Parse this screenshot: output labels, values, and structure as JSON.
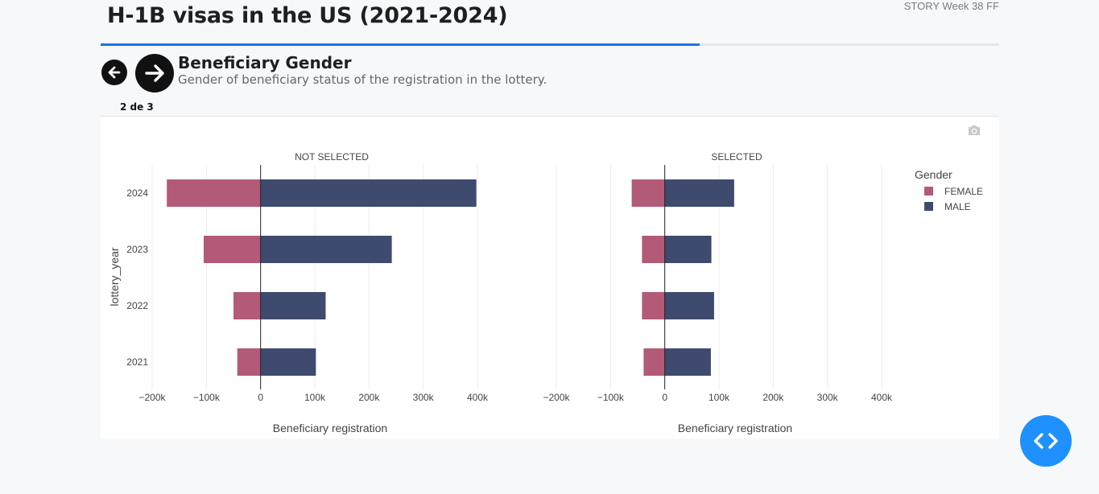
{
  "header": {
    "title": "H-1B visas in the US (2021-2024)",
    "story_tag": "STORY Week 38 FF",
    "progress": 0.667
  },
  "slide": {
    "title": "Beneficiary Gender",
    "subtitle": "Gender of beneficiary status of the registration in the lottery.",
    "counter": "2 de 3"
  },
  "icons": {
    "prev": "arrow-left-icon",
    "next": "arrow-right-icon",
    "camera": "camera-icon",
    "code": "code-icon"
  },
  "chart_data": {
    "type": "bar",
    "orientation": "horizontal",
    "ylabel": "lottery_year",
    "categories": [
      "2024",
      "2023",
      "2022",
      "2021"
    ],
    "legend": {
      "title": "Gender",
      "placement": "top-right"
    },
    "xticks": [
      -200000,
      -100000,
      0,
      100000,
      200000,
      300000,
      400000
    ],
    "xtick_labels": [
      "−200k",
      "−100k",
      "0",
      "100k",
      "200k",
      "300k",
      "400k"
    ],
    "xlim": [
      -200000,
      400000
    ],
    "grid": true,
    "panels": [
      {
        "title": "NOT SELECTED",
        "xlabel": "Beneficiary registration",
        "series": [
          {
            "name": "FEMALE",
            "color": "#b25a78",
            "values": [
              -173000,
              -105000,
              -50000,
              -43000
            ]
          },
          {
            "name": "MALE",
            "color": "#3e4b6f",
            "values": [
              398000,
              242000,
              120000,
              102000
            ]
          }
        ]
      },
      {
        "title": "SELECTED",
        "xlabel": "Beneficiary registration",
        "series": [
          {
            "name": "FEMALE",
            "color": "#b25a78",
            "values": [
              -61000,
              -42000,
              -42000,
              -39000
            ]
          },
          {
            "name": "MALE",
            "color": "#3e4b6f",
            "values": [
              128000,
              86000,
              91000,
              85000
            ]
          }
        ]
      }
    ]
  }
}
